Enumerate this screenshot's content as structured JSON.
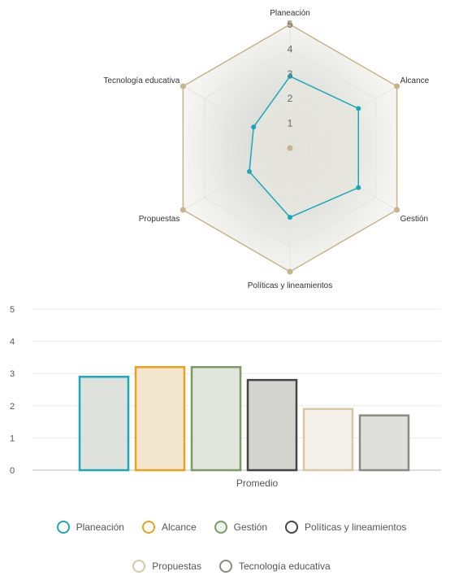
{
  "chart_data": [
    {
      "type": "radar",
      "axes": [
        "Planeación",
        "Alcance",
        "Gestión",
        "Políticas y lineamientos",
        "Propuestas",
        "Tecnología educativa"
      ],
      "ticks": [
        "1",
        "2",
        "3",
        "4",
        "5"
      ],
      "range": [
        0,
        5
      ],
      "series": [
        {
          "values": [
            2.9,
            3.2,
            3.2,
            2.8,
            1.9,
            1.7
          ],
          "color": "#1aa7b8",
          "fill": "#e6e6df"
        },
        {
          "values": [
            5,
            5,
            5,
            5,
            5,
            5
          ],
          "color": "#c8b48a"
        }
      ],
      "grid_fill_outer": "#f4f4f1",
      "grid_fill_inner": "#cfcfca"
    },
    {
      "type": "bar",
      "categories": [
        "Promedio"
      ],
      "ylim": [
        0,
        5
      ],
      "yticks": [
        "0",
        "1",
        "2",
        "3",
        "4",
        "5"
      ],
      "series": [
        {
          "name": "Planeación",
          "values": [
            2.9
          ],
          "color": "#1aa7b8",
          "fill": "#dfe2dc"
        },
        {
          "name": "Alcance",
          "values": [
            3.2
          ],
          "color": "#e8a21c",
          "fill": "#f3e6cf"
        },
        {
          "name": "Gestión",
          "values": [
            3.2
          ],
          "color": "#7d9a64",
          "fill": "#e1e6dc"
        },
        {
          "name": "Políticas y lineamientos",
          "values": [
            2.8
          ],
          "color": "#444444",
          "fill": "#d3d3d0"
        },
        {
          "name": "Propuestas",
          "values": [
            1.9
          ],
          "color": "#d8c9a4",
          "fill": "#f3f0ea"
        },
        {
          "name": "Tecnología educativa",
          "values": [
            1.7
          ],
          "color": "#8a8a84",
          "fill": "#dededb"
        }
      ]
    }
  ],
  "legend": [
    {
      "label": "Planeación",
      "color": "#1aa7b8",
      "fill": "#ffffff"
    },
    {
      "label": "Alcance",
      "color": "#e8a21c",
      "fill": "#ffffff"
    },
    {
      "label": "Gestión",
      "color": "#7d9a64",
      "fill": "#eef1ea"
    },
    {
      "label": "Políticas y lineamientos",
      "color": "#444444",
      "fill": "#ffffff"
    },
    {
      "label": "Propuestas",
      "color": "#d8c9a4",
      "fill": "#ffffff"
    },
    {
      "label": "Tecnología educativa",
      "color": "#8a8a84",
      "fill": "#ffffff"
    }
  ]
}
